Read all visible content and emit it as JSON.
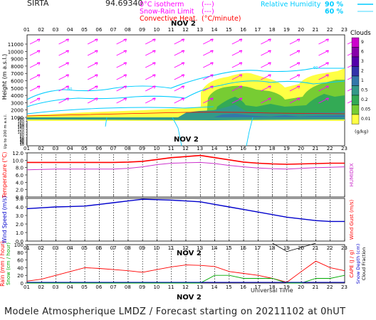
{
  "header": {
    "station": "SIRTA",
    "code": "94.69340",
    "legend_left": [
      {
        "label": "0°C isotherm",
        "key": "(---)",
        "color": "#ff00ff"
      },
      {
        "label": "Snow-Rain Limit",
        "key": "(---)",
        "color": "#ff00ff"
      },
      {
        "label": "Convective Heat.",
        "key": "(°C/minute)",
        "color": "#ff0000"
      }
    ],
    "legend_right": [
      {
        "label": "Relative Humidity",
        "value": "90 %",
        "color": "#00ccff"
      },
      {
        "label": "",
        "value": "60 %",
        "color": "#00ccff"
      }
    ]
  },
  "date_label": "NOV 2",
  "hours": [
    "01",
    "02",
    "03",
    "04",
    "05",
    "06",
    "07",
    "08",
    "09",
    "10",
    "11",
    "12",
    "13",
    "14",
    "15",
    "16",
    "17",
    "18",
    "19",
    "20",
    "21",
    "22",
    "23"
  ],
  "colors": {
    "temperature": "#ff0000",
    "humidex": "#cc33cc",
    "wind": "#0000cc",
    "precip": "#ff0000",
    "snowline": "#00aa00"
  },
  "chart_data": [
    {
      "type": "heatmap",
      "title": "Clouds",
      "ylabel": "Height (m a.s.l.)",
      "ylabel2": "Up to 200 m a.s.l.",
      "yticks_upper": [
        1000,
        2000,
        3000,
        4000,
        5000,
        6000,
        7000,
        8000,
        9000,
        10000,
        11000
      ],
      "yticks_lower": [
        10,
        20,
        30,
        40,
        50,
        60,
        80,
        100,
        120,
        140,
        150,
        160,
        180,
        200
      ],
      "colorbar": {
        "unit": "(g/kg)",
        "levels": [
          "9",
          "6",
          "3",
          "2",
          "1",
          "0.5",
          "0.2",
          "0.05",
          "0.01"
        ],
        "colors": [
          "#cc00cc",
          "#8800aa",
          "#5500aa",
          "#3333aa",
          "#3377aa",
          "#339988",
          "#33aa55",
          "#77cc33",
          "#ffff44"
        ]
      }
    },
    {
      "type": "line",
      "xlabel": "",
      "ylabel": "Temperature (°C)",
      "ylabel_right": "HUMIDEX",
      "ylim": [
        0,
        12
      ],
      "yticks": [
        0,
        2,
        4,
        6,
        8,
        10,
        12
      ],
      "x": [
        "01",
        "02",
        "03",
        "04",
        "05",
        "06",
        "07",
        "08",
        "09",
        "10",
        "11",
        "12",
        "13",
        "14",
        "15",
        "16",
        "17",
        "18",
        "19",
        "20",
        "21",
        "22",
        "23"
      ],
      "series": [
        {
          "name": "Temperature",
          "values": [
            9.4,
            9.4,
            9.4,
            9.4,
            9.4,
            9.4,
            9.4,
            9.5,
            9.7,
            10.2,
            10.7,
            11.0,
            11.3,
            10.7,
            10.1,
            9.5,
            9.2,
            9.0,
            8.9,
            9.0,
            9.1,
            9.2,
            9.2
          ]
        },
        {
          "name": "HUMIDEX",
          "values": [
            7.4,
            7.5,
            7.6,
            7.6,
            7.6,
            7.6,
            7.6,
            7.8,
            8.2,
            8.8,
            9.2,
            9.3,
            9.4,
            9.1,
            8.6,
            8.2,
            7.9,
            7.7,
            7.6,
            7.8,
            8.0,
            8.1,
            8.2
          ]
        }
      ]
    },
    {
      "type": "line",
      "ylabel": "Wind Speed (m/s)",
      "ylabel_right": "Wind Gust (m/s)",
      "ylim": [
        0,
        5
      ],
      "yticks": [
        0,
        1,
        2,
        3,
        4,
        5
      ],
      "x": [
        "01",
        "02",
        "03",
        "04",
        "05",
        "06",
        "07",
        "08",
        "09",
        "10",
        "11",
        "12",
        "13",
        "14",
        "15",
        "16",
        "17",
        "18",
        "19",
        "20",
        "21",
        "22",
        "23"
      ],
      "series": [
        {
          "name": "Wind Speed",
          "values": [
            3.8,
            3.9,
            4.0,
            4.05,
            4.1,
            4.3,
            4.5,
            4.7,
            4.9,
            4.85,
            4.8,
            4.7,
            4.6,
            4.3,
            4.0,
            3.7,
            3.4,
            3.1,
            2.8,
            2.6,
            2.4,
            2.3,
            2.3
          ]
        }
      ]
    },
    {
      "type": "line",
      "ylabel": "Rain (mm / hour)",
      "ylabel2": "Snow (cm / hour)",
      "ylabel_right": "CAPE (J / g)",
      "ylabel_right2": "Snow Depth (cm)",
      "ylabel_right3": "Cloud Fraction",
      "xlabel": "Universal Time",
      "ylim": [
        0,
        100
      ],
      "yticks": [
        0,
        20,
        40,
        60,
        80,
        100
      ],
      "x": [
        "01",
        "02",
        "03",
        "04",
        "05",
        "06",
        "07",
        "08",
        "09",
        "10",
        "11",
        "12",
        "13",
        "14",
        "15",
        "16",
        "17",
        "18",
        "19",
        "20",
        "21",
        "22",
        "23"
      ],
      "series": [
        {
          "name": "Cloud Fraction",
          "values": [
            5,
            10,
            20,
            30,
            40,
            38,
            35,
            32,
            28,
            35,
            42,
            47,
            46,
            43,
            30,
            25,
            20,
            12,
            2,
            30,
            57,
            40,
            32
          ]
        },
        {
          "name": "Snow Depth",
          "values": [
            0,
            0,
            0,
            0,
            0,
            0,
            0,
            0,
            0,
            0,
            0,
            0,
            0,
            20,
            20,
            12,
            12,
            12,
            0,
            0,
            12,
            12,
            20
          ]
        }
      ]
    }
  ],
  "footer": "Modele Atmospherique LMDZ / Forecast starting on 20211102 at 0hUT"
}
